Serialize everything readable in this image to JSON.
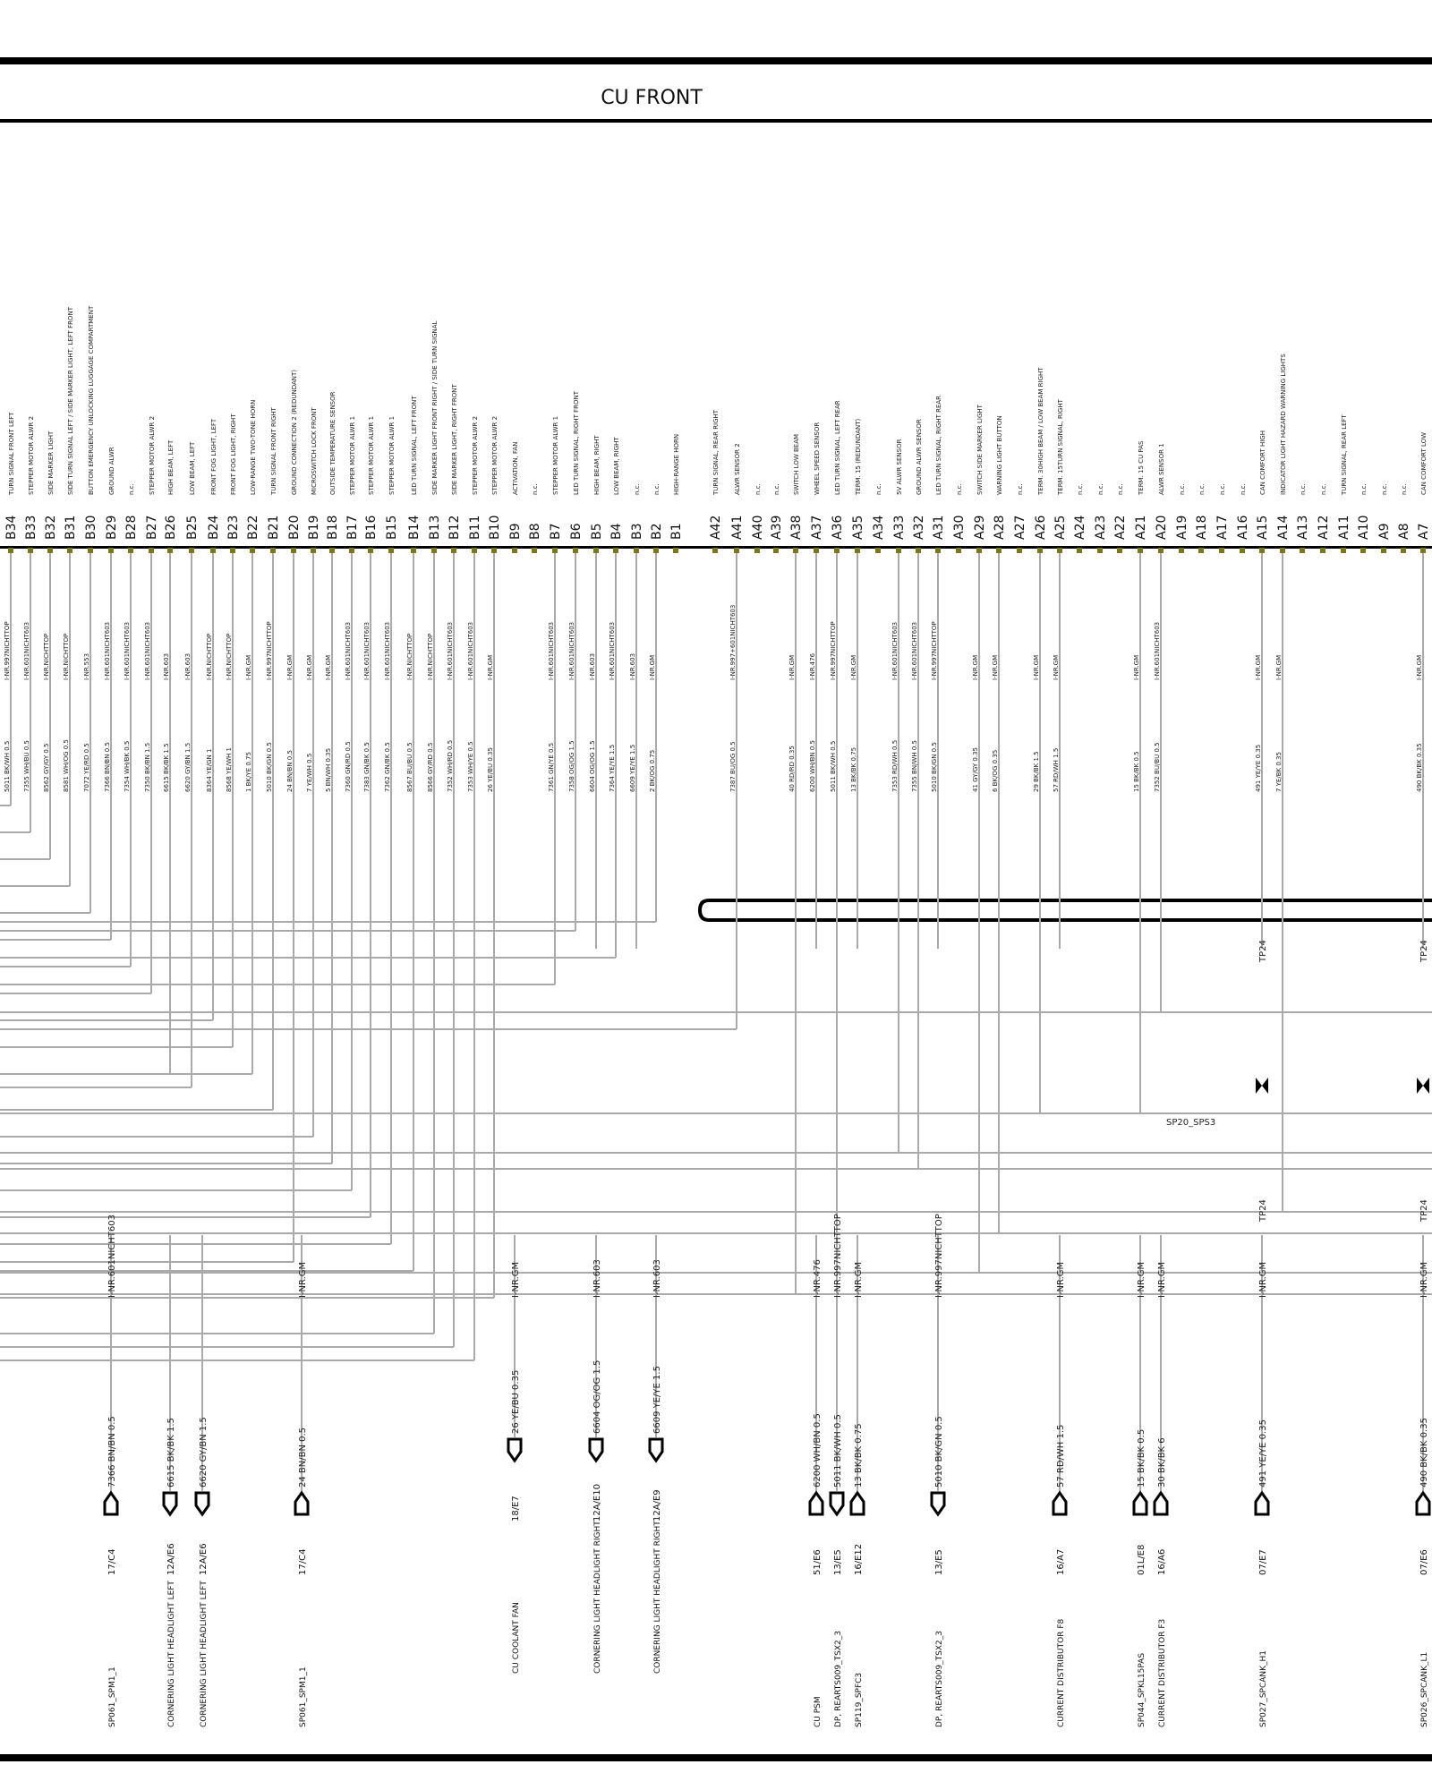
{
  "title": "CU FRONT",
  "pins": [
    {
      "id": "B34",
      "func": "TURN SIGNAL  FRONT LEFT",
      "wire": "5011 BK/WH 0.5",
      "net": "I-NR.997NICHTTOP"
    },
    {
      "id": "B33",
      "func": "STEPPER  MOTOR  ALWR 2",
      "wire": "7355 WH/BU 0.5",
      "net": "I-NR.601NICHT603"
    },
    {
      "id": "B32",
      "func": "SIDE MARKER  LIGHT",
      "wire": "8562 GY/GY 0.5",
      "net": "I-NR.NICHTTOP"
    },
    {
      "id": "B31",
      "func": "SIDE TURN SIGNAL  LEFT / SIDE MARKER LIGHT, LEFT  FRONT",
      "wire": "8581 WH/OG 0.5",
      "net": "I-NR.NICHTTOP"
    },
    {
      "id": "B30",
      "func": "BUTTON  EMERGENCY  UNLOCKING  LUGGAGE COMPARTMENT",
      "wire": "7072 YE/RD 0.5",
      "net": "I-NR.553"
    },
    {
      "id": "B29",
      "func": "GROUND  ALWR",
      "wire": "7366 BN/BN 0.5",
      "net": "I-NR.601NICHT603"
    },
    {
      "id": "B28",
      "func": "n.c.",
      "wire": "7354 WH/BK 0.5",
      "net": "I-NR.601NICHT603"
    },
    {
      "id": "B27",
      "func": "STEPPER  MOTOR  ALWR 2",
      "wire": "7350 BK/BN 1.5",
      "net": "I-NR.601NICHT603"
    },
    {
      "id": "B26",
      "func": "HIGH BEAM, LEFT",
      "wire": "6615 BK/BK 1.5",
      "net": "I-NR.603"
    },
    {
      "id": "B25",
      "func": "LOW BEAM, LEFT",
      "wire": "6620 GY/BN 1.5",
      "net": "I-NR.603"
    },
    {
      "id": "B24",
      "func": "FRONT FOG LIGHT, LEFT",
      "wire": "8364 YE/GN 1",
      "net": "I-NR.NICHTTOP"
    },
    {
      "id": "B23",
      "func": "FRONT FOG LIGHT, RIGHT",
      "wire": "8568 YE/WH 1",
      "net": "I-NR.NICHTTOP"
    },
    {
      "id": "B22",
      "func": "LOW-RANGE  TWO-TONE HORN",
      "wire": "1 BK/YE 0.75",
      "net": "I-NR.GM"
    },
    {
      "id": "B21",
      "func": "TURN SIGNAL  FRONT RIGHT",
      "wire": "5010 BK/GN 0.5",
      "net": "I-NR.997NICHTTOP"
    },
    {
      "id": "B20",
      "func": "GROUND CONNECTION 2   (REDUNDANT)",
      "wire": "24 BN/BN 0.5",
      "net": "I-NR.GM"
    },
    {
      "id": "B19",
      "func": "MICROSWITCH  LOCK  FRONT",
      "wire": "7 YE/WH 0.5",
      "net": "I-NR.GM"
    },
    {
      "id": "B18",
      "func": "OUTSIDE TEMPERATURE SENSOR",
      "wire": "5 BN/WH 0.35",
      "net": "I-NR.GM"
    },
    {
      "id": "B17",
      "func": "STEPPER  MOTOR   ALWR 1",
      "wire": "7360 GN/RD 0.5",
      "net": "I-NR.601NICHT603"
    },
    {
      "id": "B16",
      "func": "STEPPER  MOTOR   ALWR 1",
      "wire": "7383 GN/BK 0.5",
      "net": "I-NR.601NICHT603"
    },
    {
      "id": "B15",
      "func": "STEPPER  MOTOR   ALWR 1",
      "wire": "7362 GN/BK 0.5",
      "net": "I-NR.601NICHT603"
    },
    {
      "id": "B14",
      "func": "LED TURN SIGNAL, LEFT   FRONT",
      "wire": "8567 BU/BU 0.5",
      "net": "I-NR.NICHTTOP"
    },
    {
      "id": "B13",
      "func": "SIDE MARKER  LIGHT  FRONT RIGHT / SIDE TURN SIGNAL",
      "wire": "8566 GY/RD 0.5",
      "net": "I-NR.NICHTTOP"
    },
    {
      "id": "B12",
      "func": "SIDE MARKER LIGHT, RIGHT  FRONT",
      "wire": "7352 WH/RD 0.5",
      "net": "I-NR.601NICHT603"
    },
    {
      "id": "B11",
      "func": "STEPPER  MOTOR   ALWR 2",
      "wire": "7353 WH/YE 0.5",
      "net": "I-NR.601NICHT603"
    },
    {
      "id": "B10",
      "func": "STEPPER  MOTOR   ALWR 2",
      "wire": "26 YE/BU 0.35",
      "net": "I-NR.GM"
    },
    {
      "id": "B9",
      "func": "ACTIVATION, FAN",
      "wire": "",
      "net": ""
    },
    {
      "id": "B8",
      "func": "n.c.",
      "wire": "",
      "net": ""
    },
    {
      "id": "B7",
      "func": "STEPPER  MOTOR  ALWR 1",
      "wire": "7361 GN/YE 0.5",
      "net": "I-NR.601NICHT603"
    },
    {
      "id": "B6",
      "func": "LED TURN SIGNAL, RIGHT  FRONT",
      "wire": "7358 OG/OG 1.5",
      "net": "I-NR.601NICHT603"
    },
    {
      "id": "B5",
      "func": "HIGH BEAM, RIGHT",
      "wire": "6604 OG/OG 1.5",
      "net": "I-NR.603"
    },
    {
      "id": "B4",
      "func": "LOW BEAM, RIGHT",
      "wire": "7364 YE/YE 1.5",
      "net": "I-NR.601NICHT603"
    },
    {
      "id": "B3",
      "func": "n.c.",
      "wire": "6609 YE/YE 1.5",
      "net": "I-NR.603"
    },
    {
      "id": "B2",
      "func": "n.c.",
      "wire": "2 BK/OG 0.75",
      "net": "I-NR.GM"
    },
    {
      "id": "B1",
      "func": "HIGH-RANGE HORN",
      "wire": "",
      "net": ""
    },
    {
      "id": "A42",
      "func": "TURN SIGNAL, REAR RIGHT",
      "wire": "",
      "net": ""
    },
    {
      "id": "A41",
      "func": "ALWR SENSOR   2",
      "wire": "7387 BU/OG 0.5",
      "net": "I-NR.997+601NICHT603"
    },
    {
      "id": "A40",
      "func": "n.c.",
      "wire": "",
      "net": ""
    },
    {
      "id": "A39",
      "func": "n.c.",
      "wire": "",
      "net": ""
    },
    {
      "id": "A38",
      "func": "SWITCH  LOW BEAM",
      "wire": "40 RD/RD 0.35",
      "net": "I-NR.GM"
    },
    {
      "id": "A37",
      "func": "WHEEL SPEED SENSOR",
      "wire": "6200 WH/BN 0.5",
      "net": "I-NR.476"
    },
    {
      "id": "A36",
      "func": "LED TURN SIGNAL, LEFT  REAR",
      "wire": "5011 BK/WH 0.5",
      "net": "I-NR.997NICHTTOP"
    },
    {
      "id": "A35",
      "func": "TERM. 15  (REDUNDANT)",
      "wire": "13 BK/BK 0.75",
      "net": "I-NR.GM"
    },
    {
      "id": "A34",
      "func": "n.c.",
      "wire": "",
      "net": ""
    },
    {
      "id": "A33",
      "func": "5V    ALWR SENSOR",
      "wire": "7353 RD/WH 0.5",
      "net": "I-NR.601NICHT603"
    },
    {
      "id": "A32",
      "func": "GROUND  ALWR SENSOR",
      "wire": "7355 BN/WH 0.5",
      "net": "I-NR.601NICHT603"
    },
    {
      "id": "A31",
      "func": "LED TURN SIGNAL, RIGHT  REAR",
      "wire": "5010 BK/GN 0.5",
      "net": "I-NR.997NICHTTOP"
    },
    {
      "id": "A30",
      "func": "n.c.",
      "wire": "",
      "net": ""
    },
    {
      "id": "A29",
      "func": "SWITCH   SIDE MARKER  LIGHT",
      "wire": "41 GY/GY 0.35",
      "net": "I-NR.GM"
    },
    {
      "id": "A28",
      "func": "WARNING LIGHT BUTTON",
      "wire": "6 BK/OG 0.35",
      "net": "I-NR.GM"
    },
    {
      "id": "A27",
      "func": "n.c.",
      "wire": "",
      "net": ""
    },
    {
      "id": "A26",
      "func": "TERM. 30HIGH BEAM / LOW BEAM  RIGHT",
      "wire": "29 BK/BK 1.5",
      "net": "I-NR.GM"
    },
    {
      "id": "A25",
      "func": "TERM. 15TURN SIGNAL, RIGHT",
      "wire": "57 RD/WH 1.5",
      "net": "I-NR.GM"
    },
    {
      "id": "A24",
      "func": "n.c.",
      "wire": "",
      "net": ""
    },
    {
      "id": "A23",
      "func": "n.c.",
      "wire": "",
      "net": ""
    },
    {
      "id": "A22",
      "func": "n.c.",
      "wire": "",
      "net": ""
    },
    {
      "id": "A21",
      "func": "TERM. 15 CU PAS",
      "wire": "15 BK/BK 0.5",
      "net": "I-NR.GM"
    },
    {
      "id": "A20",
      "func": "ALWR SENSOR   1",
      "wire": "7352 BU/BU 0.5",
      "net": "I-NR.601NICHT603"
    },
    {
      "id": "A19",
      "func": "n.c.",
      "wire": "",
      "net": ""
    },
    {
      "id": "A18",
      "func": "n.c.",
      "wire": "",
      "net": ""
    },
    {
      "id": "A17",
      "func": "n.c.",
      "wire": "",
      "net": ""
    },
    {
      "id": "A16",
      "func": "n.c.",
      "wire": "",
      "net": ""
    },
    {
      "id": "A15",
      "func": "CAN COMFORT HIGH",
      "wire": "491 YE/YE 0.35",
      "net": "I-NR.GM"
    },
    {
      "id": "A14",
      "func": "INDICATOR LIGHT  HAZARD WARNING LIGHTS",
      "wire": "7 YE/BK 0.35",
      "net": "I-NR.GM"
    },
    {
      "id": "A13",
      "func": "n.c.",
      "wire": "",
      "net": ""
    },
    {
      "id": "A12",
      "func": "n.c.",
      "wire": "",
      "net": ""
    },
    {
      "id": "A11",
      "func": "TURN SIGNAL, REAR LEFT",
      "wire": "",
      "net": ""
    },
    {
      "id": "A10",
      "func": "n.c.",
      "wire": "",
      "net": ""
    },
    {
      "id": "A9",
      "func": "n.c.",
      "wire": "",
      "net": ""
    },
    {
      "id": "A8",
      "func": "n.c.",
      "wire": "",
      "net": ""
    },
    {
      "id": "A7",
      "func": "CAN COMFORT LOW",
      "wire": "490 BK/BK 0.35",
      "net": "I-NR.GM"
    }
  ],
  "tp_labels": [
    "TP24",
    "TP24",
    "TP24",
    "TP24"
  ],
  "splice_label": "SP20_SPS3",
  "drops": [
    {
      "net": "I-NR.601NICHT603",
      "wire": "7366 BN/BN 0.5",
      "conn": "17/C4",
      "dest": "SP061_SPM1_1"
    },
    {
      "net": "",
      "wire": "6615 BK/BK 1.5",
      "conn": "12A/E6",
      "dest": "CORNERING LIGHT HEADLIGHT LEFT"
    },
    {
      "net": "",
      "wire": "6620 GY/BN 1.5",
      "conn": "12A/E6",
      "dest": "CORNERING LIGHT HEADLIGHT LEFT"
    },
    {
      "net": "I-NR.GM",
      "wire": "24 BN/BN 0.5",
      "conn": "17/C4",
      "dest": "SP061_SPM1_1"
    },
    {
      "net": "I-NR.GM",
      "wire": "26 YE/BU 0.35",
      "conn": "18/E7",
      "dest": "CU COOLANT FAN"
    },
    {
      "net": "I-NR.603",
      "wire": "6604 OG/OG 1.5",
      "conn": "12A/E10",
      "dest": "CORNERING LIGHT HEADLIGHT RIGHT"
    },
    {
      "net": "I-NR.603",
      "wire": "6609 YE/YE 1.5",
      "conn": "12A/E9",
      "dest": "CORNERING LIGHT HEADLIGHT RIGHT"
    },
    {
      "net": "I-NR.476",
      "wire": "6200 WH/BN 0.5",
      "conn": "51/E6",
      "dest": "CU PSM"
    },
    {
      "net": "I-NR.997NICHTTOP",
      "wire": "5011 BK/WH 0.5",
      "conn": "13/E5",
      "dest": "DP, REARTS009_TSX2_3"
    },
    {
      "net": "I-NR.GM",
      "wire": "13 BK/BK 0.75",
      "conn": "16/E12",
      "dest": "SP119_SPFC3"
    },
    {
      "net": "I-NR.997NICHTTOP",
      "wire": "5010 BK/GN 0.5",
      "conn": "13/E5",
      "dest": "DP, REARTS009_TSX2_3"
    },
    {
      "net": "I-NR.GM",
      "wire": "57 RD/WH 1.5",
      "conn": "16/A7",
      "dest": "CURRENT DISTRIBUTOR F8"
    },
    {
      "net": "I-NR.GM",
      "wire": "15 BK/BK 0.5",
      "conn": "01L/E8",
      "dest": "SP044_SPKL15PAS"
    },
    {
      "net": "I-NR.GM",
      "wire": "30 BK/BK 6",
      "conn": "16/A6",
      "dest": "CURRENT DISTRIBUTOR F3"
    },
    {
      "net": "I-NR.GM",
      "wire": "491 YE/YE 0.35",
      "conn": "07/E7",
      "dest": "SP027_SPCANK_H1"
    },
    {
      "net": "I-NR.GM",
      "wire": "490 BK/BK 0.35",
      "conn": "07/E6",
      "dest": "SP026_SPCANK_L1"
    }
  ]
}
